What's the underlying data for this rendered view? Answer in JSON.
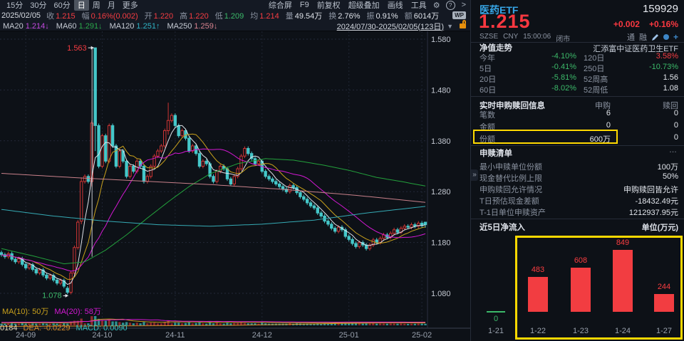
{
  "toolbar": {
    "periods": [
      "15分",
      "30分",
      "60分",
      "日",
      "周",
      "月",
      "更多"
    ],
    "selected_period": "日",
    "menu": [
      "综合屏",
      "F9",
      "前复权",
      "超级叠加",
      "画线",
      "工具"
    ],
    "gear_icon": "⚙",
    "help_icon": "?",
    "more_icon": ">",
    "wp_badge": "WP"
  },
  "quote_bar": {
    "date": "2025/02/05",
    "fields": [
      {
        "label": "收",
        "value": "1.215",
        "color": "red"
      },
      {
        "label": "幅",
        "value": "0.16%(0.002)",
        "color": "red"
      },
      {
        "label": "开",
        "value": "1.220",
        "color": "red"
      },
      {
        "label": "高",
        "value": "1.220",
        "color": "red"
      },
      {
        "label": "低",
        "value": "1.209",
        "color": "green"
      },
      {
        "label": "均",
        "value": "1.214",
        "color": "red"
      },
      {
        "label": "量",
        "value": "49.54万",
        "color": "white"
      },
      {
        "label": "换",
        "value": "2.76%",
        "color": "white"
      },
      {
        "label": "振",
        "value": "0.91%",
        "color": "white"
      },
      {
        "label": "额",
        "value": "6014万",
        "color": "white"
      }
    ]
  },
  "ma_bar": {
    "items": [
      {
        "label": "MA20",
        "value": "1.214",
        "arrow": "↓",
        "color": "c-magenta"
      },
      {
        "label": "MA60",
        "value": "1.291",
        "arrow": "↓",
        "color": "c-green"
      },
      {
        "label": "MA120",
        "value": "1.251",
        "arrow": "↑",
        "color": "c-cyan"
      },
      {
        "label": "MA250",
        "value": "1.259",
        "arrow": "↓",
        "color": "c-pink"
      }
    ],
    "date_range": "2024/07/30-2025/02/05(123日)",
    "caret": "▼"
  },
  "chart_data": [
    {
      "type": "candlestick",
      "symbol": "医药ETF 159929 日线",
      "date_range": "2024/07/30-2025/02/05(123日)",
      "y_ticks": [
        "1.580",
        "1.480",
        "1.380",
        "1.280",
        "1.180",
        "1.080"
      ],
      "ylim": [
        1.05,
        1.6
      ],
      "x_ticks": [
        {
          "label": "24-09",
          "day": 7
        },
        {
          "label": "24-10",
          "day": 29
        },
        {
          "label": "24-11",
          "day": 50
        },
        {
          "label": "24-12",
          "day": 75
        },
        {
          "label": "25-01",
          "day": 100
        },
        {
          "label": "25-02",
          "day": 121
        }
      ],
      "closes": [
        1.156,
        1.152,
        1.158,
        1.147,
        1.142,
        1.148,
        1.137,
        1.13,
        1.136,
        1.127,
        1.12,
        1.126,
        1.116,
        1.11,
        1.115,
        1.106,
        1.1,
        1.105,
        1.094,
        1.082,
        1.12,
        1.17,
        1.22,
        1.3,
        1.31,
        1.3,
        1.415,
        1.41,
        1.33,
        1.39,
        1.34,
        1.41,
        1.37,
        1.33,
        1.36,
        1.34,
        1.31,
        1.33,
        1.32,
        1.34,
        1.33,
        1.3,
        1.31,
        1.33,
        1.35,
        1.36,
        1.37,
        1.4,
        1.42,
        1.43,
        1.41,
        1.39,
        1.4,
        1.385,
        1.36,
        1.37,
        1.355,
        1.33,
        1.34,
        1.335,
        1.31,
        1.3,
        1.32,
        1.33,
        1.325,
        1.305,
        1.295,
        1.31,
        1.325,
        1.35,
        1.365,
        1.355,
        1.345,
        1.335,
        1.34,
        1.32,
        1.31,
        1.305,
        1.3,
        1.295,
        1.29,
        1.285,
        1.28,
        1.292,
        1.288,
        1.278,
        1.27,
        1.265,
        1.258,
        1.252,
        1.248,
        1.238,
        1.232,
        1.222,
        1.216,
        1.208,
        1.202,
        1.21,
        1.205,
        1.192,
        1.186,
        1.178,
        1.172,
        1.18,
        1.175,
        1.168,
        1.175,
        1.185,
        1.18,
        1.188,
        1.195,
        1.19,
        1.198,
        1.205,
        1.2,
        1.208,
        1.212,
        1.21,
        1.215,
        1.212,
        1.218,
        1.213,
        1.215
      ],
      "special_candles": {
        "19": [
          1.09,
          1.094,
          1.078,
          1.082
        ],
        "23": [
          1.222,
          1.308,
          1.216,
          1.3
        ],
        "26": [
          1.3,
          1.42,
          1.29,
          1.415
        ],
        "27": [
          1.563,
          1.563,
          1.36,
          1.41
        ],
        "48": [
          1.4,
          1.455,
          1.392,
          1.42
        ],
        "122": [
          1.22,
          1.22,
          1.209,
          1.215
        ]
      },
      "high_annotation": {
        "text": "1.563",
        "day": 27,
        "price": 1.563
      },
      "low_annotation": {
        "text": "1.078",
        "day": 19,
        "price": 1.078
      },
      "up_color": "#cd3534",
      "down_color": "#45c7c9",
      "ma_computed": [
        {
          "name": "MA5",
          "period": 5,
          "color": "#dfe3ea"
        },
        {
          "name": "MA10",
          "period": 10,
          "color": "#c9a11c"
        },
        {
          "name": "MA20",
          "period": 20,
          "color": "#d418d4"
        }
      ],
      "ma_overlays": [
        {
          "name": "MA60",
          "color": "#23a13c",
          "anchors": [
            [
              0,
              1.168
            ],
            [
              10,
              1.152
            ],
            [
              18,
              1.138
            ],
            [
              24,
              1.142
            ],
            [
              30,
              1.165
            ],
            [
              36,
              1.195
            ],
            [
              42,
              1.228
            ],
            [
              48,
              1.26
            ],
            [
              54,
              1.29
            ],
            [
              60,
              1.315
            ],
            [
              68,
              1.335
            ],
            [
              76,
              1.345
            ],
            [
              84,
              1.342
            ],
            [
              92,
              1.333
            ],
            [
              100,
              1.322
            ],
            [
              108,
              1.308
            ],
            [
              115,
              1.3
            ],
            [
              122,
              1.291
            ]
          ]
        },
        {
          "name": "MA120",
          "color": "#35aab4",
          "anchors": [
            [
              0,
              1.245
            ],
            [
              15,
              1.232
            ],
            [
              30,
              1.222
            ],
            [
              45,
              1.215
            ],
            [
              60,
              1.212
            ],
            [
              75,
              1.216
            ],
            [
              90,
              1.224
            ],
            [
              105,
              1.238
            ],
            [
              122,
              1.251
            ]
          ]
        },
        {
          "name": "MA250",
          "color": "#c8808a",
          "anchors": [
            [
              0,
              1.316
            ],
            [
              20,
              1.308
            ],
            [
              40,
              1.301
            ],
            [
              60,
              1.294
            ],
            [
              80,
              1.285
            ],
            [
              100,
              1.274
            ],
            [
              112,
              1.266
            ],
            [
              122,
              1.259
            ]
          ]
        }
      ],
      "volume_ma_labels": [
        {
          "text": "MA(10): 50万",
          "color": "#c9a11c"
        },
        {
          "text": "MA(20): 58万",
          "color": "#d418d4"
        }
      ],
      "macd_labels": [
        {
          "text": "0184",
          "color": "#ded8b8"
        },
        {
          "text": "DEA: -0.0229",
          "color": "#d78f2e"
        },
        {
          "text": "MACD: 0.0090",
          "color": "#38c4c4"
        }
      ],
      "macd_curve": [
        [
          0,
          0.35
        ],
        [
          0.2,
          0.4
        ],
        [
          0.4,
          0.45
        ],
        [
          0.55,
          0.5
        ],
        [
          0.68,
          0.62
        ],
        [
          0.8,
          0.78
        ],
        [
          0.9,
          0.85
        ],
        [
          1,
          0.88
        ]
      ]
    },
    {
      "type": "bar",
      "title": "近5日净流入",
      "unit": "单位(万元)",
      "categories": [
        "1-21",
        "1-22",
        "1-23",
        "1-24",
        "1-27"
      ],
      "values": [
        0,
        483,
        608,
        849,
        244
      ],
      "bar_color": "#f23d41",
      "zero_color": "#3cba6a",
      "label_color": "#fa3d41"
    }
  ],
  "right_panel": {
    "header": {
      "name": "医药ETF",
      "code": "159929",
      "price": "1.215",
      "change": "+0.002",
      "change_pct": "+0.16%",
      "exchange": "SZSE",
      "currency": "CNY",
      "time": "15:00:06",
      "status": "闭市",
      "tag1": "通",
      "tag2": "融",
      "plus": "+"
    },
    "nav_section": {
      "title": "净值走势",
      "subtitle": "汇添富中证医药卫生ETF",
      "rows": [
        {
          "l1": "今年",
          "v1": "-4.10%",
          "c1": "green",
          "l2": "120日",
          "v2": "3.58%",
          "c2": "red"
        },
        {
          "l1": "5日",
          "v1": "-0.41%",
          "c1": "green",
          "l2": "250日",
          "v2": "-10.73%",
          "c2": "green"
        },
        {
          "l1": "20日",
          "v1": "-5.81%",
          "c1": "green",
          "l2": "52周高",
          "v2": "1.56",
          "c2": "white"
        },
        {
          "l1": "60日",
          "v1": "-8.02%",
          "c1": "green",
          "l2": "52周低",
          "v2": "1.08",
          "c2": "white"
        }
      ]
    },
    "realtime_section": {
      "title": "实时申购赎回信息",
      "col1": "申购",
      "col2": "赎回",
      "rows": [
        {
          "label": "笔数",
          "buy": "6",
          "redeem": "0",
          "highlight": false
        },
        {
          "label": "金额",
          "buy": "0",
          "redeem": "0",
          "highlight": false
        },
        {
          "label": "份额",
          "buy": "600万",
          "redeem": "0",
          "highlight": true
        }
      ]
    },
    "list_section": {
      "title": "申赎清单",
      "more": "…",
      "rows": [
        {
          "label": "最小申赎单位份额",
          "value": "100万"
        },
        {
          "label": "现金替代比例上限",
          "value": "50%"
        },
        {
          "label": "申购赎回允许情况",
          "value": "申购赎回皆允许"
        },
        {
          "label": "T日预估现金差额",
          "value": "-18432.49元"
        },
        {
          "label": "T-1日单位申赎资产",
          "value": "1212937.95元"
        }
      ]
    },
    "flow_section": {
      "title": "近5日净流入",
      "unit": "单位(万元)"
    },
    "collapse_handle": "»",
    "highlight_color": "#ffd900"
  }
}
